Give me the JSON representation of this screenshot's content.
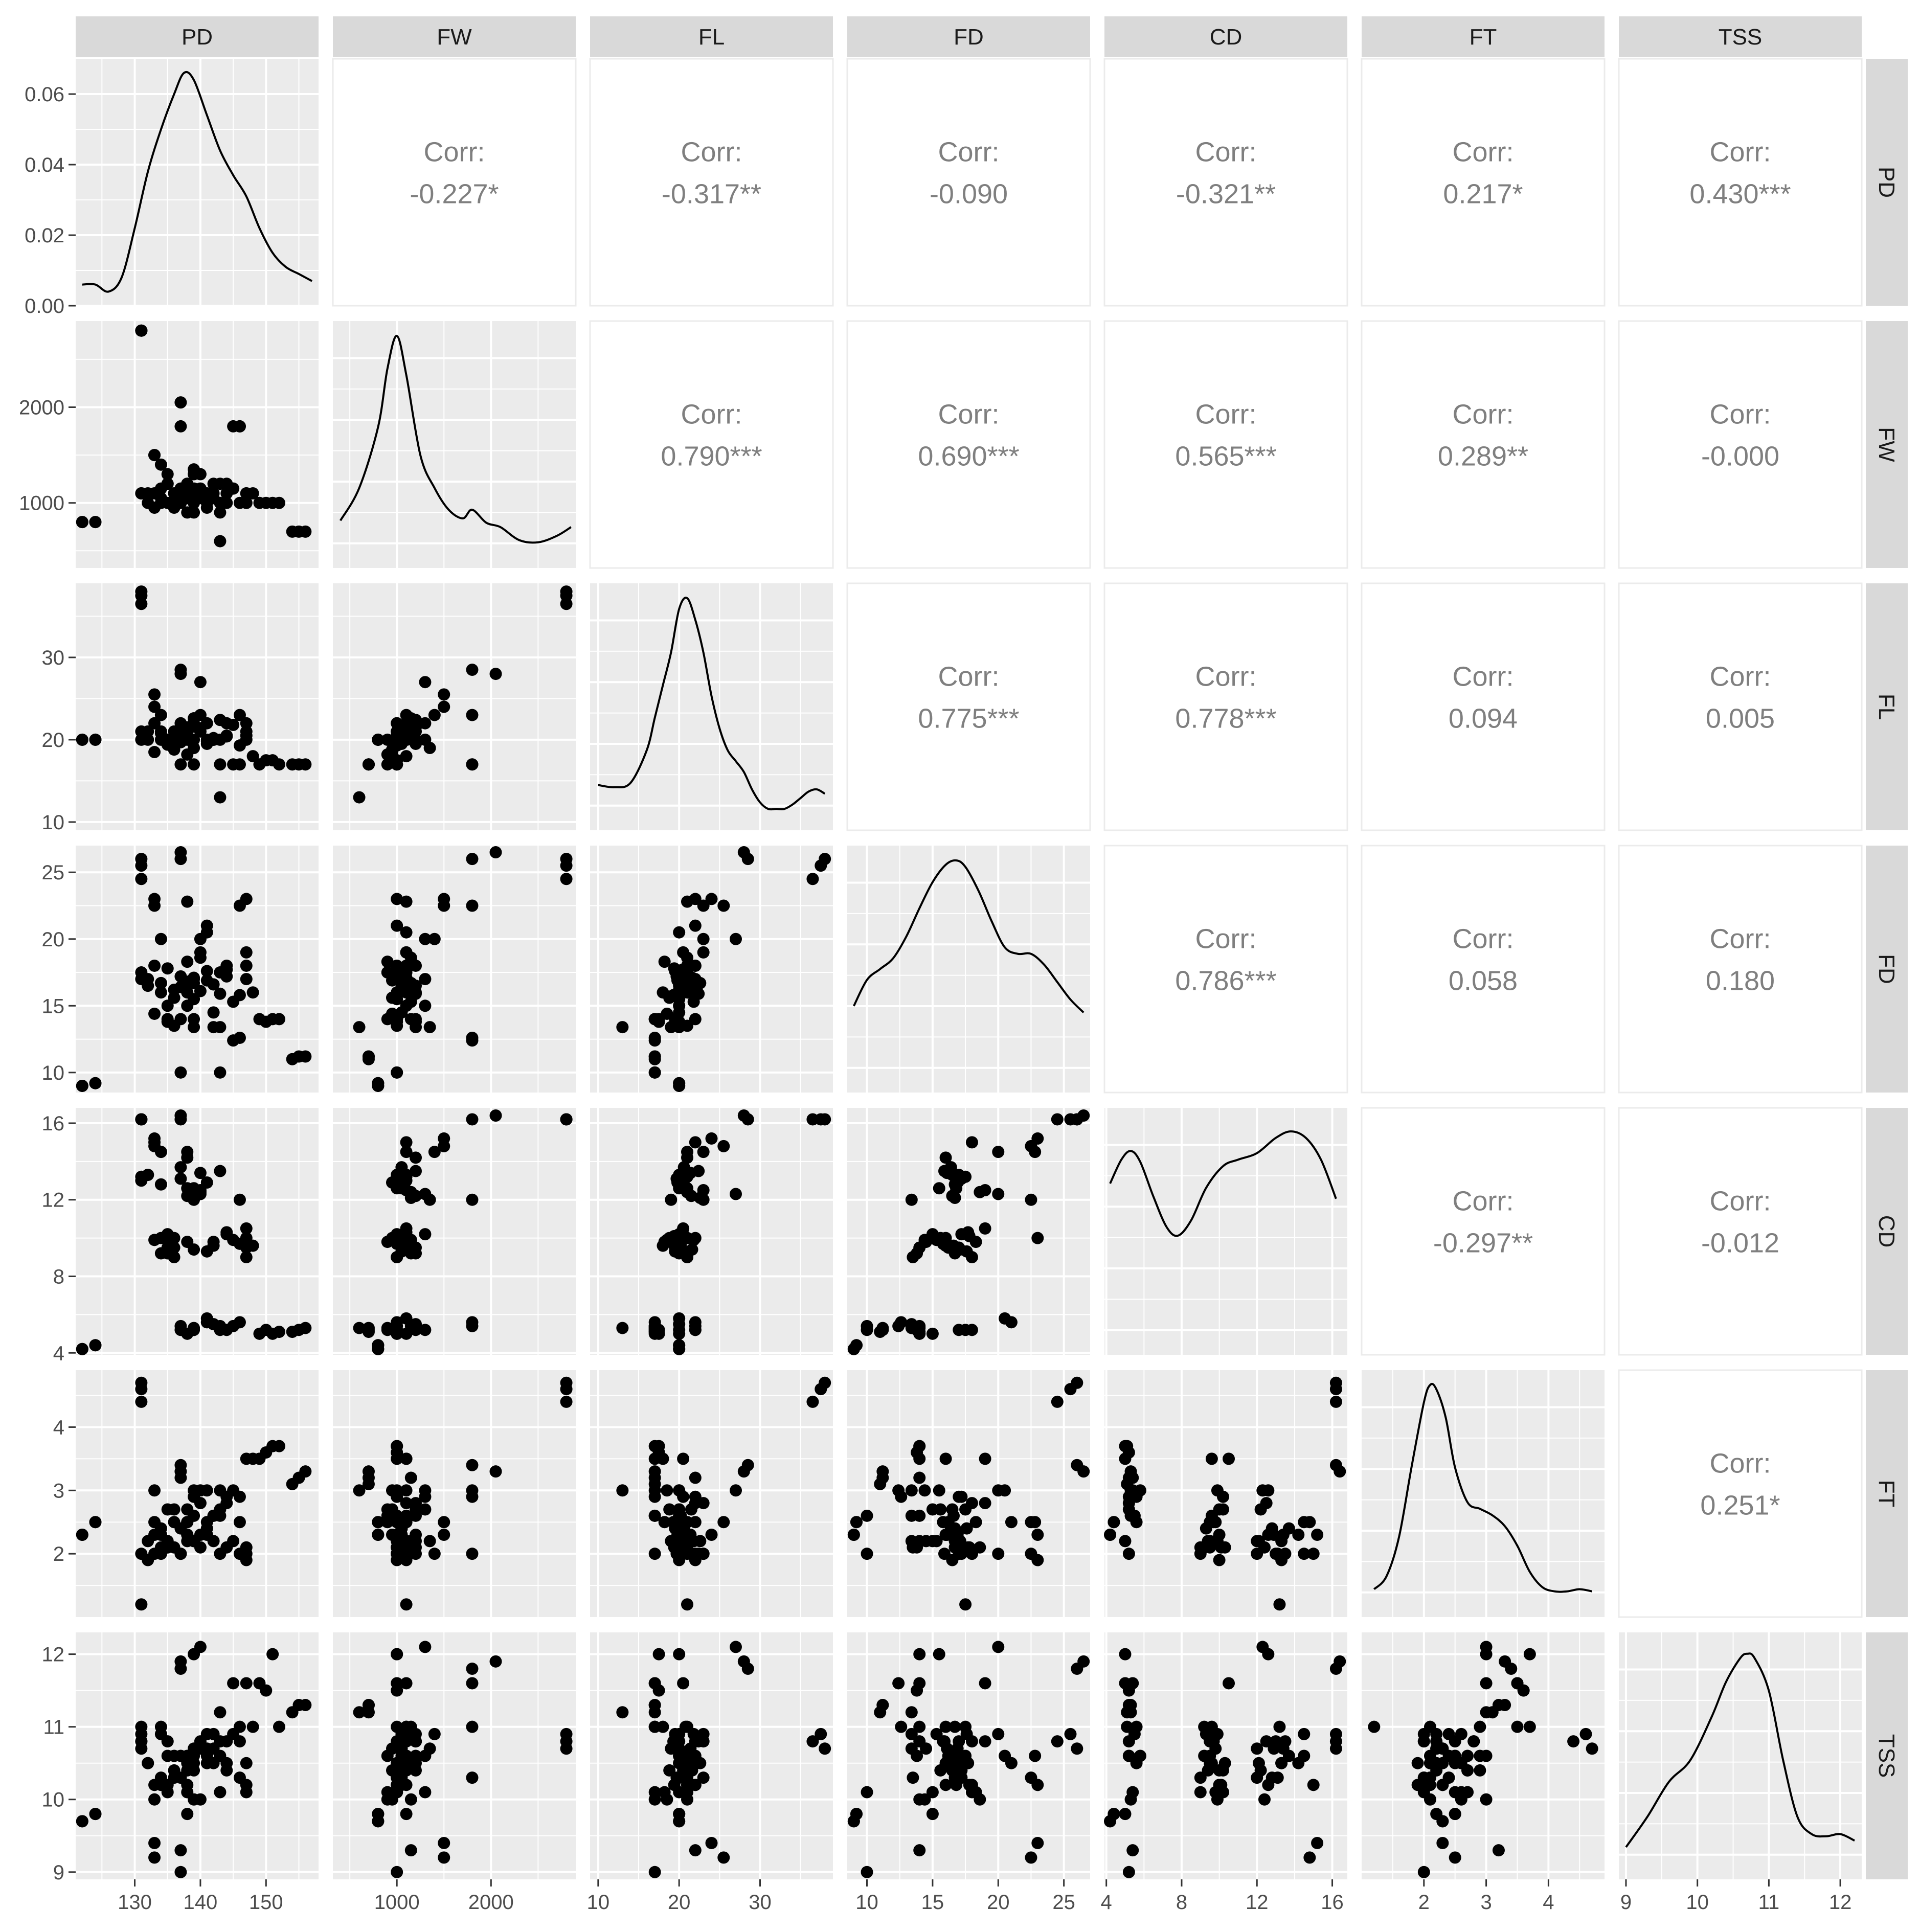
{
  "chart_data": {
    "type": "scatter-matrix",
    "variables": [
      "PD",
      "FW",
      "FL",
      "FD",
      "CD",
      "FT",
      "TSS"
    ],
    "corr_prefix": "Corr:",
    "correlations": {
      "PD-FW": "-0.227*",
      "PD-FL": "-0.317**",
      "PD-FD": "-0.090",
      "PD-CD": "-0.321**",
      "PD-FT": "0.217*",
      "PD-TSS": "0.430***",
      "FW-FL": "0.790***",
      "FW-FD": "0.690***",
      "FW-CD": "0.565***",
      "FW-FT": "0.289**",
      "FW-TSS": "-0.000",
      "FL-FD": "0.775***",
      "FL-CD": "0.778***",
      "FL-FT": "0.094",
      "FL-TSS": "0.005",
      "FD-CD": "0.786***",
      "FD-FT": "0.058",
      "FD-TSS": "0.180",
      "CD-FT": "-0.297**",
      "CD-TSS": "-0.012",
      "FT-TSS": "0.251*"
    },
    "axes": {
      "PD": {
        "range": [
          121,
          158
        ],
        "ticks": [
          130,
          140,
          150
        ]
      },
      "FW": {
        "range": [
          320,
          2900
        ],
        "ticks": [
          1000,
          2000
        ]
      },
      "FL": {
        "range": [
          9,
          39
        ],
        "ticks": [
          10,
          20,
          30
        ]
      },
      "FD": {
        "range": [
          8.5,
          27
        ],
        "ticks": [
          10,
          15,
          20,
          25
        ]
      },
      "CD": {
        "range": [
          3.9,
          16.8
        ],
        "ticks": [
          4,
          8,
          12,
          16
        ]
      },
      "FT": {
        "range": [
          1.0,
          4.9
        ],
        "ticks": [
          2,
          3,
          4
        ]
      },
      "TSS": {
        "range": [
          8.9,
          12.3
        ],
        "ticks": [
          9,
          10,
          11,
          12
        ]
      }
    },
    "density_axis": {
      "variable": "PD",
      "range": [
        0,
        0.07
      ],
      "ticks": [
        "0.00",
        "0.02",
        "0.04",
        "0.06"
      ]
    },
    "densities": {
      "PD": {
        "x": [
          122,
          124,
          126,
          128,
          130,
          132,
          134,
          136,
          137.5,
          139,
          141,
          143,
          145,
          147,
          149,
          151,
          153,
          155,
          157
        ],
        "y": [
          0.006,
          0.006,
          0.004,
          0.008,
          0.022,
          0.038,
          0.05,
          0.06,
          0.066,
          0.064,
          0.054,
          0.044,
          0.037,
          0.031,
          0.022,
          0.015,
          0.011,
          0.009,
          0.007
        ]
      },
      "FW": {
        "x": [
          400,
          600,
          800,
          900,
          1000,
          1100,
          1250,
          1400,
          1550,
          1700,
          1800,
          1950,
          2100,
          2300,
          2500,
          2700,
          2850
        ],
        "y": [
          0.15,
          0.3,
          0.58,
          0.85,
          1.0,
          0.82,
          0.45,
          0.3,
          0.2,
          0.16,
          0.2,
          0.14,
          0.12,
          0.06,
          0.05,
          0.08,
          0.12
        ]
      },
      "FL": {
        "x": [
          10,
          12,
          14,
          16,
          17,
          18,
          19,
          20,
          21,
          22,
          23,
          24,
          25,
          26,
          27,
          28,
          29,
          30,
          31,
          32,
          33,
          34,
          35,
          36,
          37,
          38
        ],
        "y": [
          0.14,
          0.13,
          0.15,
          0.3,
          0.45,
          0.6,
          0.75,
          0.95,
          1.0,
          0.9,
          0.75,
          0.55,
          0.4,
          0.3,
          0.25,
          0.2,
          0.12,
          0.06,
          0.03,
          0.03,
          0.03,
          0.05,
          0.08,
          0.11,
          0.12,
          0.1
        ]
      },
      "FD": {
        "x": [
          9,
          10,
          11,
          12,
          13,
          14,
          15,
          16,
          16.8,
          17.5,
          18.5,
          19.5,
          20.5,
          21.5,
          22.5,
          23.5,
          24.5,
          25.5,
          26.5
        ],
        "y": [
          0.33,
          0.45,
          0.5,
          0.55,
          0.65,
          0.78,
          0.9,
          0.98,
          1.0,
          0.97,
          0.86,
          0.72,
          0.6,
          0.57,
          0.57,
          0.52,
          0.44,
          0.36,
          0.3
        ]
      },
      "CD": {
        "x": [
          4.2,
          4.8,
          5.3,
          5.8,
          6.5,
          7.2,
          7.8,
          8.5,
          9.3,
          10.2,
          11,
          12,
          13,
          13.8,
          14.6,
          15.4,
          16.2
        ],
        "y": [
          0.72,
          0.83,
          0.87,
          0.82,
          0.66,
          0.52,
          0.48,
          0.55,
          0.7,
          0.8,
          0.83,
          0.86,
          0.93,
          0.96,
          0.93,
          0.83,
          0.65
        ]
      },
      "FT": {
        "x": [
          1.2,
          1.4,
          1.6,
          1.8,
          2.0,
          2.1,
          2.2,
          2.35,
          2.5,
          2.7,
          2.9,
          3.1,
          3.3,
          3.5,
          3.7,
          3.9,
          4.1,
          4.3,
          4.5,
          4.7
        ],
        "y": [
          0.06,
          0.12,
          0.3,
          0.62,
          0.92,
          1.0,
          0.98,
          0.85,
          0.62,
          0.46,
          0.43,
          0.4,
          0.35,
          0.26,
          0.14,
          0.07,
          0.05,
          0.05,
          0.06,
          0.05
        ]
      },
      "TSS": {
        "x": [
          9.0,
          9.3,
          9.6,
          9.9,
          10.2,
          10.4,
          10.6,
          10.7,
          10.8,
          11.0,
          11.2,
          11.4,
          11.6,
          11.8,
          12.0,
          12.2
        ],
        "y": [
          0.08,
          0.22,
          0.38,
          0.48,
          0.68,
          0.84,
          0.95,
          0.97,
          0.95,
          0.8,
          0.48,
          0.22,
          0.14,
          0.13,
          0.14,
          0.11
        ]
      }
    },
    "observations": [
      [
        122,
        800,
        20,
        9.0,
        4.2,
        2.3,
        9.7
      ],
      [
        122,
        800,
        20,
        9.0,
        4.2,
        2.3,
        9.7
      ],
      [
        124,
        800,
        20,
        9.2,
        4.4,
        2.5,
        9.8
      ],
      [
        124,
        800,
        20,
        9.2,
        4.4,
        2.5,
        9.8
      ],
      [
        131,
        2800,
        36.5,
        24.5,
        16.2,
        4.4,
        10.8
      ],
      [
        131,
        2800,
        37.5,
        25.5,
        16.2,
        4.6,
        10.9
      ],
      [
        131,
        2800,
        38,
        26,
        16.2,
        4.7,
        10.7
      ],
      [
        131,
        1100,
        20,
        17,
        13,
        2.0,
        10.8
      ],
      [
        131,
        1100,
        21,
        17.5,
        13.2,
        1.2,
        11.0
      ],
      [
        132,
        1100,
        20,
        16.5,
        13.3,
        1.9,
        10.5
      ],
      [
        133,
        1500,
        24,
        23,
        15.2,
        2.3,
        9.4
      ],
      [
        133,
        1500,
        25.5,
        22.5,
        14.8,
        2.5,
        9.2
      ],
      [
        134,
        1400,
        23,
        20,
        14.5,
        2.0,
        10.9
      ],
      [
        133,
        1100,
        22,
        18,
        15,
        2.0,
        10.2
      ],
      [
        134,
        1000,
        21,
        16,
        10,
        2.3,
        10.2
      ],
      [
        135,
        1300,
        20,
        15,
        10.2,
        2.7,
        10.1
      ],
      [
        135,
        1200,
        19.5,
        14,
        9.5,
        2.2,
        10.8
      ],
      [
        135,
        1200,
        20,
        13.8,
        9.2,
        2.1,
        10.6
      ],
      [
        136,
        1000,
        21,
        13.5,
        9,
        2.1,
        10.3
      ],
      [
        137,
        2050,
        28,
        26.5,
        16.4,
        3.3,
        11.9
      ],
      [
        137,
        1800,
        28.5,
        26,
        16.2,
        3.4,
        11.8
      ],
      [
        137,
        1000,
        17,
        10,
        5.2,
        2.0,
        9.0
      ],
      [
        137,
        1150,
        22,
        14,
        5.4,
        3.2,
        9.3
      ],
      [
        138,
        1100,
        20,
        15,
        5.0,
        2.2,
        9.8
      ],
      [
        138,
        1100,
        21,
        22.8,
        14.5,
        2.5,
        10.6
      ],
      [
        138,
        1200,
        21,
        16,
        14.2,
        2.3,
        10.5
      ],
      [
        138,
        1200,
        21.5,
        16.5,
        12.2,
        2.7,
        10.4
      ],
      [
        139,
        1350,
        19,
        13.4,
        12,
        2.2,
        10.7
      ],
      [
        139,
        1300,
        22,
        17,
        5.2,
        2.9,
        10.6
      ],
      [
        139,
        900,
        17,
        14,
        5.3,
        2.6,
        10.0
      ],
      [
        139,
        1000,
        20,
        15.5,
        12.6,
        3.0,
        12.0
      ],
      [
        140,
        1300,
        27,
        20,
        12.3,
        3.0,
        12.1
      ],
      [
        140,
        1100,
        23,
        19,
        12.5,
        2.8,
        10.8
      ],
      [
        141,
        1000,
        22,
        21,
        5.6,
        2.5,
        10.5
      ],
      [
        141,
        1100,
        20,
        20.5,
        5.8,
        3.0,
        10.6
      ],
      [
        142,
        1200,
        20,
        13.4,
        5.5,
        2.6,
        10.9
      ],
      [
        143,
        1000,
        17,
        10,
        5.4,
        2.6,
        10.1
      ],
      [
        143,
        600,
        13,
        13.4,
        5.3,
        3.0,
        11.2
      ],
      [
        143,
        900,
        20,
        17.5,
        5.2,
        2.7,
        10.6
      ],
      [
        144,
        1200,
        22,
        18,
        5.2,
        2.8,
        10.8
      ],
      [
        145,
        1800,
        17,
        12.4,
        5.4,
        3.0,
        11.6
      ],
      [
        146,
        1800,
        17,
        12.6,
        5.6,
        2.9,
        11.0
      ],
      [
        146,
        1800,
        23,
        22.5,
        12,
        2.0,
        10.3
      ],
      [
        147,
        1000,
        22,
        23,
        10,
        1.9,
        10.2
      ],
      [
        147,
        1000,
        21,
        18,
        9,
        2.0,
        10.1
      ],
      [
        147,
        1100,
        20,
        17,
        9.5,
        2.1,
        10.5
      ],
      [
        147,
        1100,
        20.5,
        19,
        10.5,
        3.5,
        11.6
      ],
      [
        148,
        1100,
        18,
        16,
        9.6,
        3.5,
        11.0
      ],
      [
        149,
        1000,
        17,
        14,
        5,
        3.5,
        11.6
      ],
      [
        150,
        1000,
        17.5,
        13.8,
        5.2,
        3.6,
        11.5
      ],
      [
        151,
        1000,
        17.5,
        14,
        5,
        3.7,
        12.0
      ],
      [
        152,
        1000,
        17,
        14,
        5.1,
        3.7,
        11.0
      ],
      [
        154,
        700,
        17,
        11,
        5.1,
        3.1,
        11.2
      ],
      [
        155,
        700,
        17,
        11.2,
        5.2,
        3.2,
        11.3
      ],
      [
        156,
        700,
        17,
        11.2,
        5.3,
        3.3,
        11.3
      ],
      [
        132,
        1000,
        21,
        17,
        13.3,
        2.2,
        10.5
      ],
      [
        134,
        1050,
        20,
        16.7,
        12.8,
        2.4,
        10.3
      ],
      [
        136,
        1100,
        20,
        16.2,
        9.5,
        2.5,
        10.6
      ],
      [
        140,
        1150,
        21,
        18.6,
        12.4,
        2.1,
        10.0
      ],
      [
        142,
        1050,
        20,
        14.5,
        9.8,
        2.2,
        10.7
      ],
      [
        136,
        950,
        18.8,
        15.6,
        10,
        2.7,
        10.4
      ],
      [
        138,
        1050,
        21,
        16.8,
        12.6,
        2.3,
        10.2
      ],
      [
        139,
        1150,
        22.6,
        16.7,
        12.1,
        2.2,
        10.5
      ],
      [
        141,
        1050,
        19.5,
        17.6,
        9.3,
        2.4,
        10.9
      ],
      [
        144,
        1000,
        20.5,
        17.2,
        10.2,
        2.9,
        10.4
      ],
      [
        146,
        1000,
        19.3,
        15.8,
        9.7,
        2.5,
        10.8
      ],
      [
        133,
        950,
        18.5,
        14.4,
        9.9,
        3.0,
        10.0
      ],
      [
        134,
        1150,
        20.8,
        16.7,
        9.2,
        2.1,
        11.0
      ],
      [
        137,
        1000,
        19.7,
        17.2,
        13.1,
        2.0,
        10.3
      ],
      [
        140,
        1050,
        21.4,
        16.1,
        13.4,
        2.3,
        10.7
      ],
      [
        142,
        1100,
        20.2,
        16.6,
        9.6,
        2.6,
        10.5
      ],
      [
        145,
        1150,
        21.8,
        15.3,
        9.9,
        2.2,
        10.9
      ],
      [
        135,
        1000,
        19.4,
        17.8,
        10.1,
        2.1,
        10.2
      ],
      [
        137,
        1050,
        20.6,
        16.4,
        13.7,
        2.4,
        10.6
      ],
      [
        139,
        1100,
        21.6,
        17.1,
        9.4,
        2.2,
        10.4
      ],
      [
        143,
        1200,
        22.4,
        15.9,
        13.5,
        2.0,
        10.8
      ],
      [
        138,
        900,
        18.2,
        18.3,
        9.8,
        2.5,
        10.1
      ],
      [
        141,
        950,
        19.8,
        16.9,
        12.9,
        2.3,
        10.7
      ],
      [
        144,
        1100,
        20.4,
        17.7,
        10.3,
        2.1,
        10.5
      ]
    ]
  }
}
